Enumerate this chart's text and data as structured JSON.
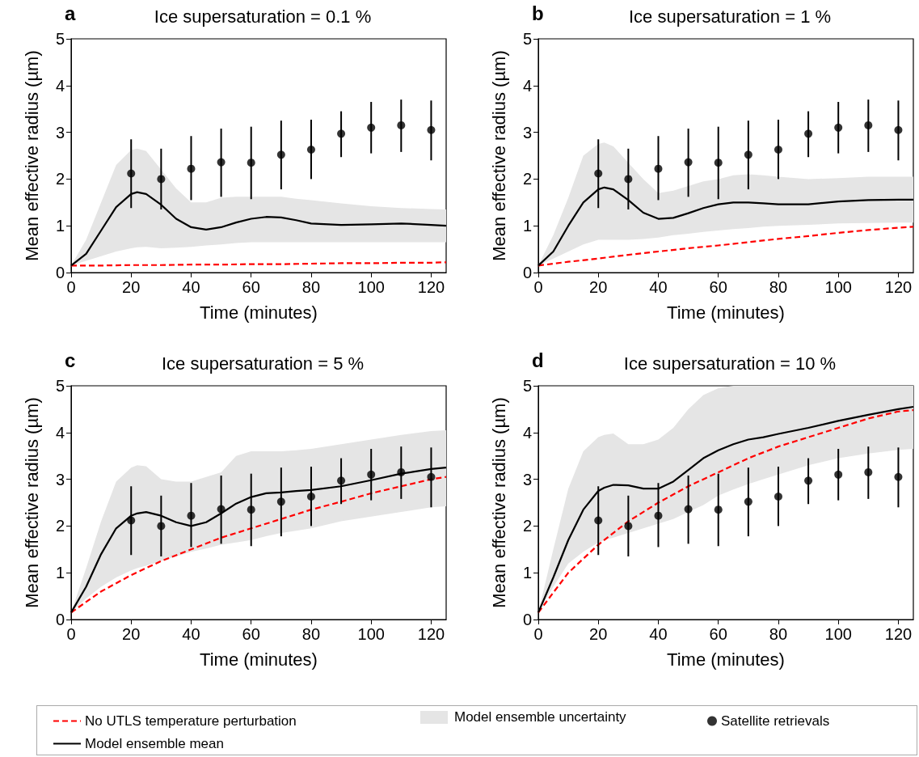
{
  "chart_data": [
    {
      "type": "line",
      "title": "Ice supersaturation = 0.1 %",
      "annotations": [
        "a"
      ],
      "xlabel": "Time (minutes)",
      "ylabel": "Mean effective radius (µm)",
      "xlim": [
        0,
        125
      ],
      "xticks": [
        0,
        20,
        40,
        60,
        80,
        100,
        120
      ],
      "ylim": [
        0,
        5
      ],
      "yticks": [
        0,
        1,
        2,
        3,
        4,
        5
      ],
      "grid": false,
      "marker": "none",
      "series": [
        {
          "color": "#ff0000",
          "line_style": "dashed",
          "x": [
            0,
            10,
            20,
            30,
            40,
            50,
            60,
            70,
            80,
            90,
            100,
            110,
            120,
            125
          ],
          "values": [
            0.15,
            0.15,
            0.16,
            0.16,
            0.17,
            0.17,
            0.18,
            0.18,
            0.19,
            0.2,
            0.2,
            0.21,
            0.21,
            0.22
          ]
        },
        {
          "color": "#000000",
          "line_style": "solid",
          "x": [
            0,
            5,
            10,
            15,
            20,
            22,
            25,
            30,
            35,
            40,
            45,
            50,
            55,
            60,
            65,
            70,
            75,
            80,
            90,
            100,
            110,
            120,
            125
          ],
          "values": [
            0.15,
            0.4,
            0.9,
            1.4,
            1.68,
            1.72,
            1.68,
            1.45,
            1.15,
            0.97,
            0.92,
            0.97,
            1.07,
            1.15,
            1.19,
            1.18,
            1.12,
            1.05,
            1.02,
            1.03,
            1.05,
            1.02,
            1.0
          ],
          "lower": [
            0.15,
            0.25,
            0.35,
            0.45,
            0.52,
            0.54,
            0.55,
            0.52,
            0.53,
            0.55,
            0.58,
            0.6,
            0.63,
            0.65,
            0.65,
            0.65,
            0.65,
            0.65,
            0.65,
            0.65,
            0.65,
            0.65,
            0.65
          ],
          "upper": [
            0.15,
            0.7,
            1.5,
            2.3,
            2.62,
            2.65,
            2.6,
            2.2,
            1.8,
            1.5,
            1.5,
            1.6,
            1.62,
            1.62,
            1.62,
            1.62,
            1.58,
            1.55,
            1.48,
            1.42,
            1.38,
            1.36,
            1.35
          ]
        },
        {
          "type": "scatter",
          "marker": "circle",
          "color": "#000000",
          "x": [
            20,
            30,
            40,
            50,
            60,
            70,
            80,
            90,
            100,
            110,
            120
          ],
          "values": [
            2.12,
            2.0,
            2.22,
            2.36,
            2.35,
            2.52,
            2.63,
            2.97,
            3.1,
            3.15,
            3.05
          ],
          "errors": [
            [
              1.38,
              2.85
            ],
            [
              1.35,
              2.65
            ],
            [
              1.55,
              2.92
            ],
            [
              1.62,
              3.08
            ],
            [
              1.57,
              3.12
            ],
            [
              1.78,
              3.25
            ],
            [
              2.0,
              3.27
            ],
            [
              2.47,
              3.45
            ],
            [
              2.55,
              3.65
            ],
            [
              2.58,
              3.7
            ],
            [
              2.4,
              3.68
            ]
          ]
        }
      ]
    },
    {
      "type": "line",
      "title": "Ice supersaturation = 1 %",
      "annotations": [
        "b"
      ],
      "xlabel": "Time (minutes)",
      "ylabel": "Mean effective radius (µm)",
      "xlim": [
        0,
        125
      ],
      "xticks": [
        0,
        20,
        40,
        60,
        80,
        100,
        120
      ],
      "ylim": [
        0,
        5
      ],
      "yticks": [
        0,
        1,
        2,
        3,
        4,
        5
      ],
      "grid": false,
      "marker": "none",
      "series": [
        {
          "color": "#ff0000",
          "line_style": "dashed",
          "x": [
            0,
            10,
            20,
            30,
            40,
            50,
            60,
            70,
            80,
            90,
            100,
            110,
            120,
            125
          ],
          "values": [
            0.15,
            0.23,
            0.3,
            0.38,
            0.45,
            0.52,
            0.58,
            0.65,
            0.72,
            0.78,
            0.85,
            0.91,
            0.96,
            0.98
          ]
        },
        {
          "color": "#000000",
          "line_style": "solid",
          "x": [
            0,
            5,
            10,
            15,
            20,
            22,
            25,
            30,
            35,
            40,
            45,
            50,
            55,
            60,
            65,
            70,
            75,
            80,
            90,
            100,
            110,
            120,
            125
          ],
          "values": [
            0.15,
            0.45,
            1.0,
            1.5,
            1.78,
            1.82,
            1.78,
            1.55,
            1.28,
            1.15,
            1.17,
            1.27,
            1.38,
            1.46,
            1.5,
            1.5,
            1.48,
            1.46,
            1.46,
            1.52,
            1.55,
            1.56,
            1.56
          ],
          "lower": [
            0.15,
            0.3,
            0.45,
            0.6,
            0.7,
            0.7,
            0.7,
            0.7,
            0.72,
            0.75,
            0.8,
            0.83,
            0.87,
            0.9,
            0.93,
            0.95,
            0.98,
            1.0,
            1.02,
            1.05,
            1.06,
            1.07,
            1.07
          ],
          "upper": [
            0.15,
            0.8,
            1.6,
            2.5,
            2.75,
            2.78,
            2.7,
            2.35,
            2.0,
            1.7,
            1.75,
            1.85,
            1.95,
            2.0,
            2.08,
            2.1,
            2.08,
            2.05,
            2.0,
            2.02,
            2.05,
            2.05,
            2.05
          ]
        },
        {
          "type": "scatter",
          "marker": "circle",
          "color": "#000000",
          "x": [
            20,
            30,
            40,
            50,
            60,
            70,
            80,
            90,
            100,
            110,
            120
          ],
          "values": [
            2.12,
            2.0,
            2.22,
            2.36,
            2.35,
            2.52,
            2.63,
            2.97,
            3.1,
            3.15,
            3.05
          ],
          "errors": [
            [
              1.38,
              2.85
            ],
            [
              1.35,
              2.65
            ],
            [
              1.55,
              2.92
            ],
            [
              1.62,
              3.08
            ],
            [
              1.57,
              3.12
            ],
            [
              1.78,
              3.25
            ],
            [
              2.0,
              3.27
            ],
            [
              2.47,
              3.45
            ],
            [
              2.55,
              3.65
            ],
            [
              2.58,
              3.7
            ],
            [
              2.4,
              3.68
            ]
          ]
        }
      ]
    },
    {
      "type": "line",
      "title": "Ice supersaturation = 5 %",
      "annotations": [
        "c"
      ],
      "xlabel": "Time (minutes)",
      "ylabel": "Mean effective radius (µm)",
      "xlim": [
        0,
        125
      ],
      "xticks": [
        0,
        20,
        40,
        60,
        80,
        100,
        120
      ],
      "ylim": [
        0,
        5
      ],
      "yticks": [
        0,
        1,
        2,
        3,
        4,
        5
      ],
      "grid": false,
      "marker": "none",
      "series": [
        {
          "color": "#ff0000",
          "line_style": "dashed",
          "x": [
            0,
            10,
            20,
            30,
            40,
            50,
            60,
            70,
            80,
            90,
            100,
            110,
            120,
            125
          ],
          "values": [
            0.15,
            0.6,
            0.95,
            1.25,
            1.5,
            1.75,
            1.95,
            2.15,
            2.35,
            2.52,
            2.7,
            2.85,
            3.0,
            3.05
          ]
        },
        {
          "color": "#000000",
          "line_style": "solid",
          "x": [
            0,
            5,
            10,
            15,
            20,
            22,
            25,
            30,
            35,
            40,
            45,
            50,
            55,
            60,
            65,
            70,
            75,
            80,
            90,
            100,
            110,
            120,
            125
          ],
          "values": [
            0.15,
            0.7,
            1.4,
            1.95,
            2.22,
            2.27,
            2.3,
            2.22,
            2.08,
            2.0,
            2.08,
            2.27,
            2.48,
            2.62,
            2.7,
            2.72,
            2.75,
            2.77,
            2.85,
            2.98,
            3.12,
            3.22,
            3.25
          ],
          "lower": [
            0.15,
            0.45,
            0.7,
            0.9,
            1.05,
            1.1,
            1.15,
            1.25,
            1.35,
            1.45,
            1.52,
            1.6,
            1.65,
            1.7,
            1.78,
            1.85,
            1.9,
            1.95,
            2.1,
            2.2,
            2.3,
            2.4,
            2.42
          ],
          "upper": [
            0.15,
            1.1,
            2.1,
            2.95,
            3.25,
            3.3,
            3.28,
            3.0,
            2.95,
            2.95,
            3.05,
            3.15,
            3.5,
            3.6,
            3.6,
            3.6,
            3.62,
            3.65,
            3.75,
            3.85,
            3.95,
            4.03,
            4.05
          ]
        },
        {
          "type": "scatter",
          "marker": "circle",
          "color": "#000000",
          "x": [
            20,
            30,
            40,
            50,
            60,
            70,
            80,
            90,
            100,
            110,
            120
          ],
          "values": [
            2.12,
            2.0,
            2.22,
            2.36,
            2.35,
            2.52,
            2.63,
            2.97,
            3.1,
            3.15,
            3.05
          ],
          "errors": [
            [
              1.38,
              2.85
            ],
            [
              1.35,
              2.65
            ],
            [
              1.55,
              2.92
            ],
            [
              1.62,
              3.08
            ],
            [
              1.57,
              3.12
            ],
            [
              1.78,
              3.25
            ],
            [
              2.0,
              3.27
            ],
            [
              2.47,
              3.45
            ],
            [
              2.55,
              3.65
            ],
            [
              2.58,
              3.7
            ],
            [
              2.4,
              3.68
            ]
          ]
        }
      ]
    },
    {
      "type": "line",
      "title": "Ice supersaturation = 10 %",
      "annotations": [
        "d",
        "Model ensemble uncertainty"
      ],
      "xlabel": "Time (minutes)",
      "ylabel": "Mean effective radius (µm)",
      "xlim": [
        0,
        125
      ],
      "xticks": [
        0,
        20,
        40,
        60,
        80,
        100,
        120
      ],
      "ylim": [
        0,
        5
      ],
      "yticks": [
        0,
        1,
        2,
        3,
        4,
        5
      ],
      "grid": false,
      "marker": "none",
      "legend": "bottom",
      "series": [
        {
          "name": "No UTLS temperature perturbation",
          "color": "#ff0000",
          "line_style": "dashed",
          "x": [
            0,
            10,
            20,
            30,
            40,
            50,
            60,
            70,
            80,
            90,
            100,
            110,
            120,
            125
          ],
          "values": [
            0.15,
            1.0,
            1.6,
            2.1,
            2.5,
            2.85,
            3.15,
            3.45,
            3.7,
            3.9,
            4.1,
            4.3,
            4.45,
            4.48
          ]
        },
        {
          "name": "Model ensemble mean",
          "color": "#000000",
          "line_style": "solid",
          "x": [
            0,
            5,
            10,
            15,
            20,
            22,
            25,
            30,
            35,
            40,
            45,
            50,
            55,
            60,
            65,
            70,
            75,
            80,
            90,
            100,
            110,
            120,
            125
          ],
          "values": [
            0.15,
            0.9,
            1.7,
            2.35,
            2.75,
            2.82,
            2.88,
            2.87,
            2.8,
            2.8,
            2.95,
            3.2,
            3.45,
            3.62,
            3.75,
            3.85,
            3.9,
            3.97,
            4.1,
            4.25,
            4.38,
            4.5,
            4.55
          ],
          "lower": [
            0.15,
            0.7,
            1.2,
            1.45,
            1.65,
            1.7,
            1.75,
            1.85,
            1.95,
            2.05,
            2.15,
            2.3,
            2.45,
            2.65,
            2.78,
            2.9,
            3.0,
            3.1,
            3.3,
            3.45,
            3.55,
            3.63,
            3.65
          ],
          "upper": [
            0.15,
            1.5,
            2.8,
            3.6,
            3.9,
            3.95,
            3.98,
            3.75,
            3.75,
            3.85,
            4.1,
            4.5,
            4.8,
            4.95,
            5,
            5,
            5,
            5,
            5,
            5,
            5,
            5,
            5
          ]
        },
        {
          "name": "Satellite retrievals",
          "type": "scatter",
          "marker": "circle",
          "color": "#000000",
          "x": [
            20,
            30,
            40,
            50,
            60,
            70,
            80,
            90,
            100,
            110,
            120
          ],
          "values": [
            2.12,
            2.0,
            2.22,
            2.36,
            2.35,
            2.52,
            2.63,
            2.97,
            3.1,
            3.15,
            3.05
          ],
          "errors": [
            [
              1.38,
              2.85
            ],
            [
              1.35,
              2.65
            ],
            [
              1.55,
              2.92
            ],
            [
              1.62,
              3.08
            ],
            [
              1.57,
              3.12
            ],
            [
              1.78,
              3.25
            ],
            [
              2.0,
              3.27
            ],
            [
              2.47,
              3.45
            ],
            [
              2.55,
              3.65
            ],
            [
              2.58,
              3.7
            ],
            [
              2.4,
              3.68
            ]
          ]
        }
      ]
    }
  ]
}
